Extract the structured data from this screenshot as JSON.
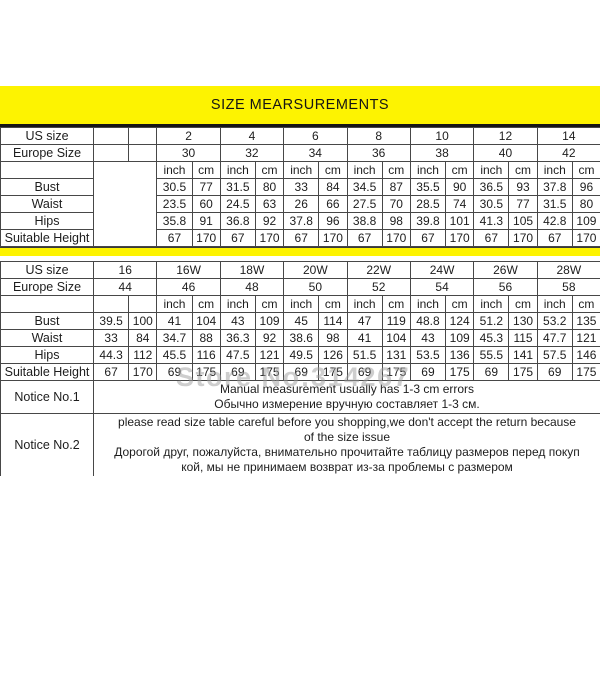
{
  "page": {
    "title": "SIZE MEARSUREMENTS",
    "watermark": "Store No:314267"
  },
  "colors": {
    "banner_yellow": "#fdf301",
    "border_gray": "#474747",
    "text_black": "#1d1d1d",
    "watermark_gray": "#9f9f9f"
  },
  "labels": {
    "us_size": "US size",
    "europe_size": "Europe Size",
    "inch": "inch",
    "cm": "cm",
    "bust": "Bust",
    "waist": "Waist",
    "hips": "Hips",
    "suitable_height": "Suitable Height",
    "notice1": "Notice No.1",
    "notice2": "Notice No.2"
  },
  "table1": {
    "us_sizes": [
      "2",
      "4",
      "6",
      "8",
      "10",
      "12",
      "14"
    ],
    "europe_sizes": [
      "30",
      "32",
      "34",
      "36",
      "38",
      "40",
      "42"
    ],
    "measurements": [
      {
        "label": "Bust",
        "values": [
          "30.5",
          "77",
          "31.5",
          "80",
          "33",
          "84",
          "34.5",
          "87",
          "35.5",
          "90",
          "36.5",
          "93",
          "37.8",
          "96"
        ]
      },
      {
        "label": "Waist",
        "values": [
          "23.5",
          "60",
          "24.5",
          "63",
          "26",
          "66",
          "27.5",
          "70",
          "28.5",
          "74",
          "30.5",
          "77",
          "31.5",
          "80"
        ]
      },
      {
        "label": "Hips",
        "values": [
          "35.8",
          "91",
          "36.8",
          "92",
          "37.8",
          "96",
          "38.8",
          "98",
          "39.8",
          "101",
          "41.3",
          "105",
          "42.8",
          "109"
        ]
      },
      {
        "label": "Suitable Height",
        "values": [
          "67",
          "170",
          "67",
          "170",
          "67",
          "170",
          "67",
          "170",
          "67",
          "170",
          "67",
          "170",
          "67",
          "170"
        ]
      }
    ]
  },
  "table2": {
    "us_sizes": [
      "16",
      "16W",
      "18W",
      "20W",
      "22W",
      "24W",
      "26W",
      "28W"
    ],
    "europe_sizes": [
      "44",
      "46",
      "48",
      "50",
      "52",
      "54",
      "56",
      "58"
    ],
    "measurements": [
      {
        "label": "Bust",
        "values": [
          "39.5",
          "100",
          "41",
          "104",
          "43",
          "109",
          "45",
          "114",
          "47",
          "119",
          "48.8",
          "124",
          "51.2",
          "130",
          "53.2",
          "135"
        ]
      },
      {
        "label": "Waist",
        "values": [
          "33",
          "84",
          "34.7",
          "88",
          "36.3",
          "92",
          "38.6",
          "98",
          "41",
          "104",
          "43",
          "109",
          "45.3",
          "115",
          "47.7",
          "121"
        ]
      },
      {
        "label": "Hips",
        "values": [
          "44.3",
          "112",
          "45.5",
          "116",
          "47.5",
          "121",
          "49.5",
          "126",
          "51.5",
          "131",
          "53.5",
          "136",
          "55.5",
          "141",
          "57.5",
          "146"
        ]
      },
      {
        "label": "Suitable Height",
        "values": [
          "67",
          "170",
          "69",
          "175",
          "69",
          "175",
          "69",
          "175",
          "69",
          "175",
          "69",
          "175",
          "69",
          "175",
          "69",
          "175"
        ]
      }
    ],
    "notices": [
      {
        "label": "Notice No.1",
        "lines": [
          "Manual measurement usually has 1-3 cm errors",
          "Обычно измерение вручную составляет 1-3 см."
        ]
      },
      {
        "label": "Notice No.2",
        "lines": [
          "please read size table careful before you shopping,we don't accept the return because",
          "of the size issue",
          "Дорогой друг, пожалуйста, внимательно прочитайте таблицу размеров перед покуп",
          "кой, мы не принимаем возврат из-за проблемы с размером"
        ]
      }
    ]
  }
}
